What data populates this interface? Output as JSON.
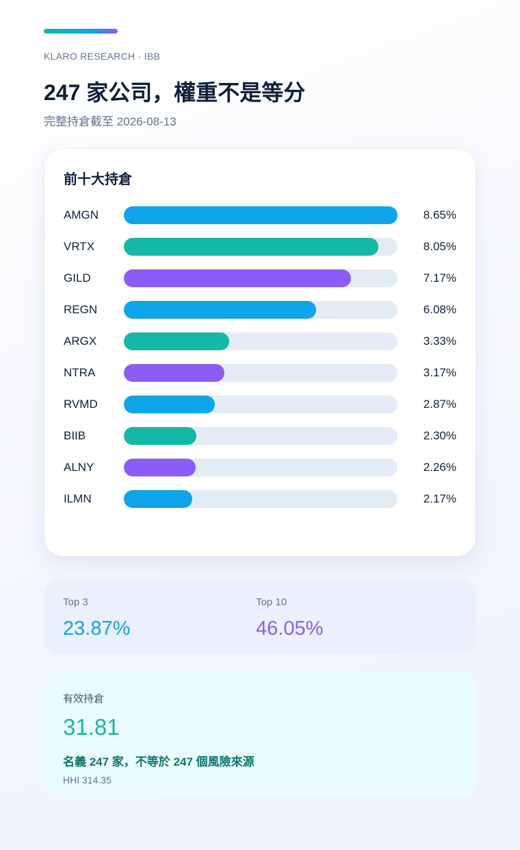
{
  "header": {
    "brand": "KLARO RESEARCH · IBB",
    "title": "247 家公司，權重不是等分",
    "subtitle": "完整持倉截至 2026-08-13"
  },
  "chart_data": {
    "type": "bar",
    "orientation": "horizontal",
    "title": "前十大持倉",
    "categories": [
      "AMGN",
      "VRTX",
      "GILD",
      "REGN",
      "ARGX",
      "NTRA",
      "RVMD",
      "BIIB",
      "ALNY",
      "ILMN"
    ],
    "values": [
      8.65,
      8.05,
      7.17,
      6.08,
      3.33,
      3.17,
      2.87,
      2.3,
      2.26,
      2.17
    ],
    "value_labels": [
      "8.65%",
      "8.05%",
      "7.17%",
      "6.08%",
      "3.33%",
      "3.17%",
      "2.87%",
      "2.30%",
      "2.26%",
      "2.17%"
    ],
    "colors": [
      "#0ea5e9",
      "#14b8a6",
      "#8b5cf6",
      "#0ea5e9",
      "#14b8a6",
      "#8b5cf6",
      "#0ea5e9",
      "#14b8a6",
      "#8b5cf6",
      "#0ea5e9"
    ],
    "xlim": [
      0,
      8.65
    ]
  },
  "stats": [
    {
      "label": "Top 3",
      "value": "23.87%",
      "color": "#0ea5e9"
    },
    {
      "label": "Top 10",
      "value": "46.05%",
      "color": "#8b5cf6"
    }
  ],
  "effective": {
    "label": "有效持倉",
    "value": "31.81",
    "note": "名義 247 家，不等於 247 個風險來源",
    "hhi": "HHI 314.35"
  }
}
